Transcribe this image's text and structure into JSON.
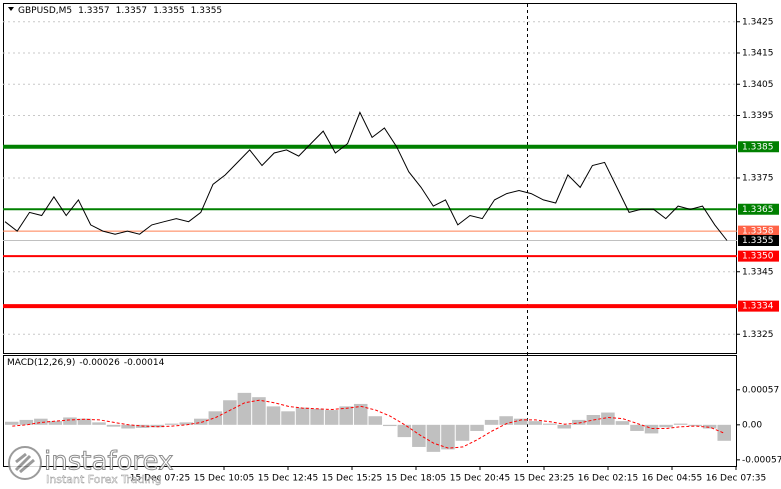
{
  "header": {
    "symbol": "GBPUSD,M5",
    "ohlc": [
      1.3357,
      1.3357,
      1.3355,
      1.3355
    ]
  },
  "chart_data": [
    {
      "type": "line",
      "series": [
        {
          "color": "#000000",
          "values": [
            1.3361,
            1.3358,
            1.3364,
            1.3363,
            1.3369,
            1.3363,
            1.3368,
            1.336,
            1.3358,
            1.3357,
            1.3358,
            1.3357,
            1.336,
            1.3361,
            1.3362,
            1.3361,
            1.3364,
            1.3373,
            1.3376,
            1.338,
            1.3384,
            1.3379,
            1.3383,
            1.3384,
            1.3382,
            1.3386,
            1.339,
            1.3383,
            1.3386,
            1.3396,
            1.3388,
            1.3391,
            1.3385,
            1.3377,
            1.3372,
            1.3366,
            1.3368,
            1.336,
            1.3363,
            1.3362,
            1.3368,
            1.337,
            1.3371,
            1.337,
            1.3368,
            1.3367,
            1.3376,
            1.3372,
            1.3379,
            1.338,
            1.3372,
            1.3364,
            1.3365,
            1.3365,
            1.3362,
            1.3366,
            1.3365,
            1.3366,
            1.336,
            1.3355
          ]
        }
      ],
      "ylim": [
        1.3319,
        1.3431
      ],
      "yticks": [
        1.3425,
        1.3415,
        1.3405,
        1.3395,
        1.3375,
        1.3345,
        1.3325
      ],
      "grid": true,
      "levels": [
        {
          "price": 1.3385,
          "color": "#008000",
          "label_bg": "#008000",
          "width": 4
        },
        {
          "price": 1.3365,
          "color": "#008000",
          "label_bg": "#008000",
          "width": 2
        },
        {
          "price": 1.3358,
          "color": "#ff7f50",
          "label_bg": "#ff6347",
          "width": 1
        },
        {
          "price": 1.3355,
          "color": "#c0c0c0",
          "label_bg": "#000000",
          "width": 1
        },
        {
          "price": {
            "value": 1.335,
            "label": "1.3350"
          },
          "color": "#ff0000",
          "label_bg": "#ff0000",
          "width": 2
        },
        {
          "price": 1.3334,
          "color": "#ff0000",
          "label_bg": "#ff0000",
          "width": 4
        }
      ],
      "x_labels": [
        "15 Dec 07:25",
        "15 Dec 10:05",
        "15 Dec 12:45",
        "15 Dec 15:25",
        "15 Dec 18:05",
        "15 Dec 20:45",
        "15 Dec 23:25",
        "16 Dec 02:15",
        "16 Dec 04:55",
        "16 Dec 07:35"
      ]
    },
    {
      "type": "macd",
      "title": "MACD(12,26,9)",
      "header_values": [
        -0.00026,
        -0.00014
      ],
      "histogram": {
        "color": "#c0c0c0",
        "values": [
          5e-05,
          8e-05,
          0.0001,
          6e-05,
          0.00012,
          0.0001,
          4e-05,
          -3e-05,
          -6e-05,
          -5e-05,
          -4e-05,
          2e-05,
          4e-05,
          0.0001,
          0.00022,
          0.0004,
          0.00052,
          0.00045,
          0.0003,
          0.00022,
          0.00028,
          0.00026,
          0.00024,
          0.0003,
          0.00034,
          0.00014,
          -2e-05,
          -0.0002,
          -0.00036,
          -0.00044,
          -0.0004,
          -0.00026,
          -0.0001,
          8e-05,
          0.00014,
          0.0001,
          6e-05,
          2e-05,
          -6e-05,
          8e-05,
          0.00016,
          0.0002,
          6e-05,
          -0.0001,
          -0.00014,
          -4e-05,
          2e-05,
          -2e-05,
          -6e-05,
          -0.00026
        ]
      },
      "signal": {
        "color": "#ff0000",
        "values": [
          -2e-05,
          0.0,
          4e-05,
          6e-05,
          8e-05,
          9e-05,
          8e-05,
          4e-05,
          0.0,
          -2e-05,
          -3e-05,
          -2e-05,
          0.0,
          4e-05,
          0.00012,
          0.00024,
          0.00036,
          0.0004,
          0.00036,
          0.0003,
          0.00027,
          0.00026,
          0.00025,
          0.00027,
          0.0003,
          0.00024,
          0.00014,
          0.0,
          -0.00016,
          -0.0003,
          -0.00038,
          -0.00036,
          -0.00024,
          -0.0001,
          2e-05,
          8e-05,
          8e-05,
          5e-05,
          1e-05,
          3e-05,
          8e-05,
          0.00012,
          0.0001,
          2e-05,
          -6e-05,
          -6e-05,
          -3e-05,
          -2e-05,
          -4e-05,
          -0.00014
        ]
      },
      "ylim": [
        -0.00067,
        0.00112
      ],
      "yticks": [
        0.00057,
        {
          "value": 0,
          "label": "0.00"
        },
        -0.00057
      ]
    }
  ],
  "watermark": {
    "brand": "instaforex",
    "tagline": "Instant Forex Trading"
  }
}
